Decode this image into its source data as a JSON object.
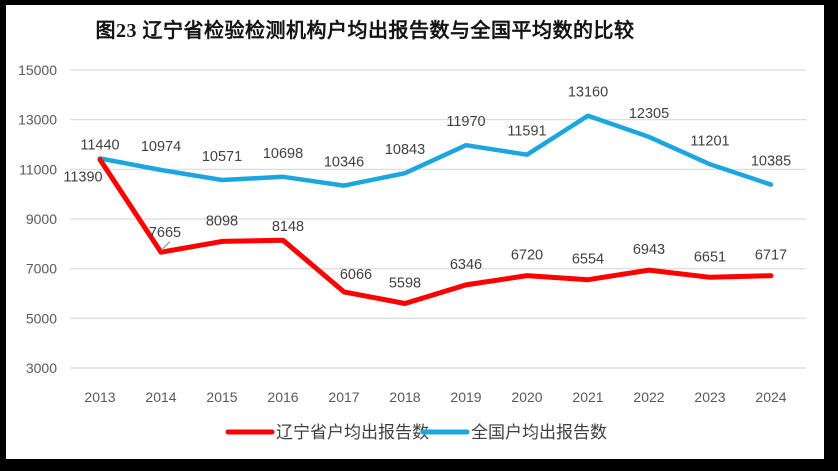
{
  "page": {
    "title": "图23 辽宁省检验检测机构户均出报告数与全国平均数的比较"
  },
  "colors": {
    "liaoning_red": "#FE0000",
    "national_blue": "#1CA6DF",
    "gridline": "#D9D9D9",
    "axis_text": "#595959",
    "label_text": "#404040",
    "legend_text": "#3F3F3F",
    "leader_line": "#A6A6A6",
    "frame": "#000000",
    "background": "#FFFFFF"
  },
  "chart_data": {
    "type": "line",
    "title": "图23 辽宁省检验检测机构户均出报告数与全国平均数的比较",
    "categories": [
      "2013",
      "2014",
      "2015",
      "2016",
      "2017",
      "2018",
      "2019",
      "2020",
      "2021",
      "2022",
      "2023",
      "2024"
    ],
    "series": [
      {
        "name": "辽宁省户均出报告数",
        "color": "#FE0000",
        "values": [
          11390,
          7665,
          8098,
          8148,
          6066,
          5598,
          6346,
          6720,
          6554,
          6943,
          6651,
          6717
        ]
      },
      {
        "name": "全国户均出报告数",
        "color": "#1CA6DF",
        "values": [
          11440,
          10974,
          10571,
          10698,
          10346,
          10843,
          11970,
          11591,
          13160,
          12305,
          11201,
          10385
        ]
      }
    ],
    "xlabel": "",
    "ylabel": "",
    "ylim": [
      3000,
      15000
    ],
    "yticks": [
      15000,
      13000,
      11000,
      9000,
      7000,
      5000,
      3000
    ],
    "ytick_step": 2000,
    "grid": true,
    "data_labels": true,
    "legend_position": "bottom"
  }
}
